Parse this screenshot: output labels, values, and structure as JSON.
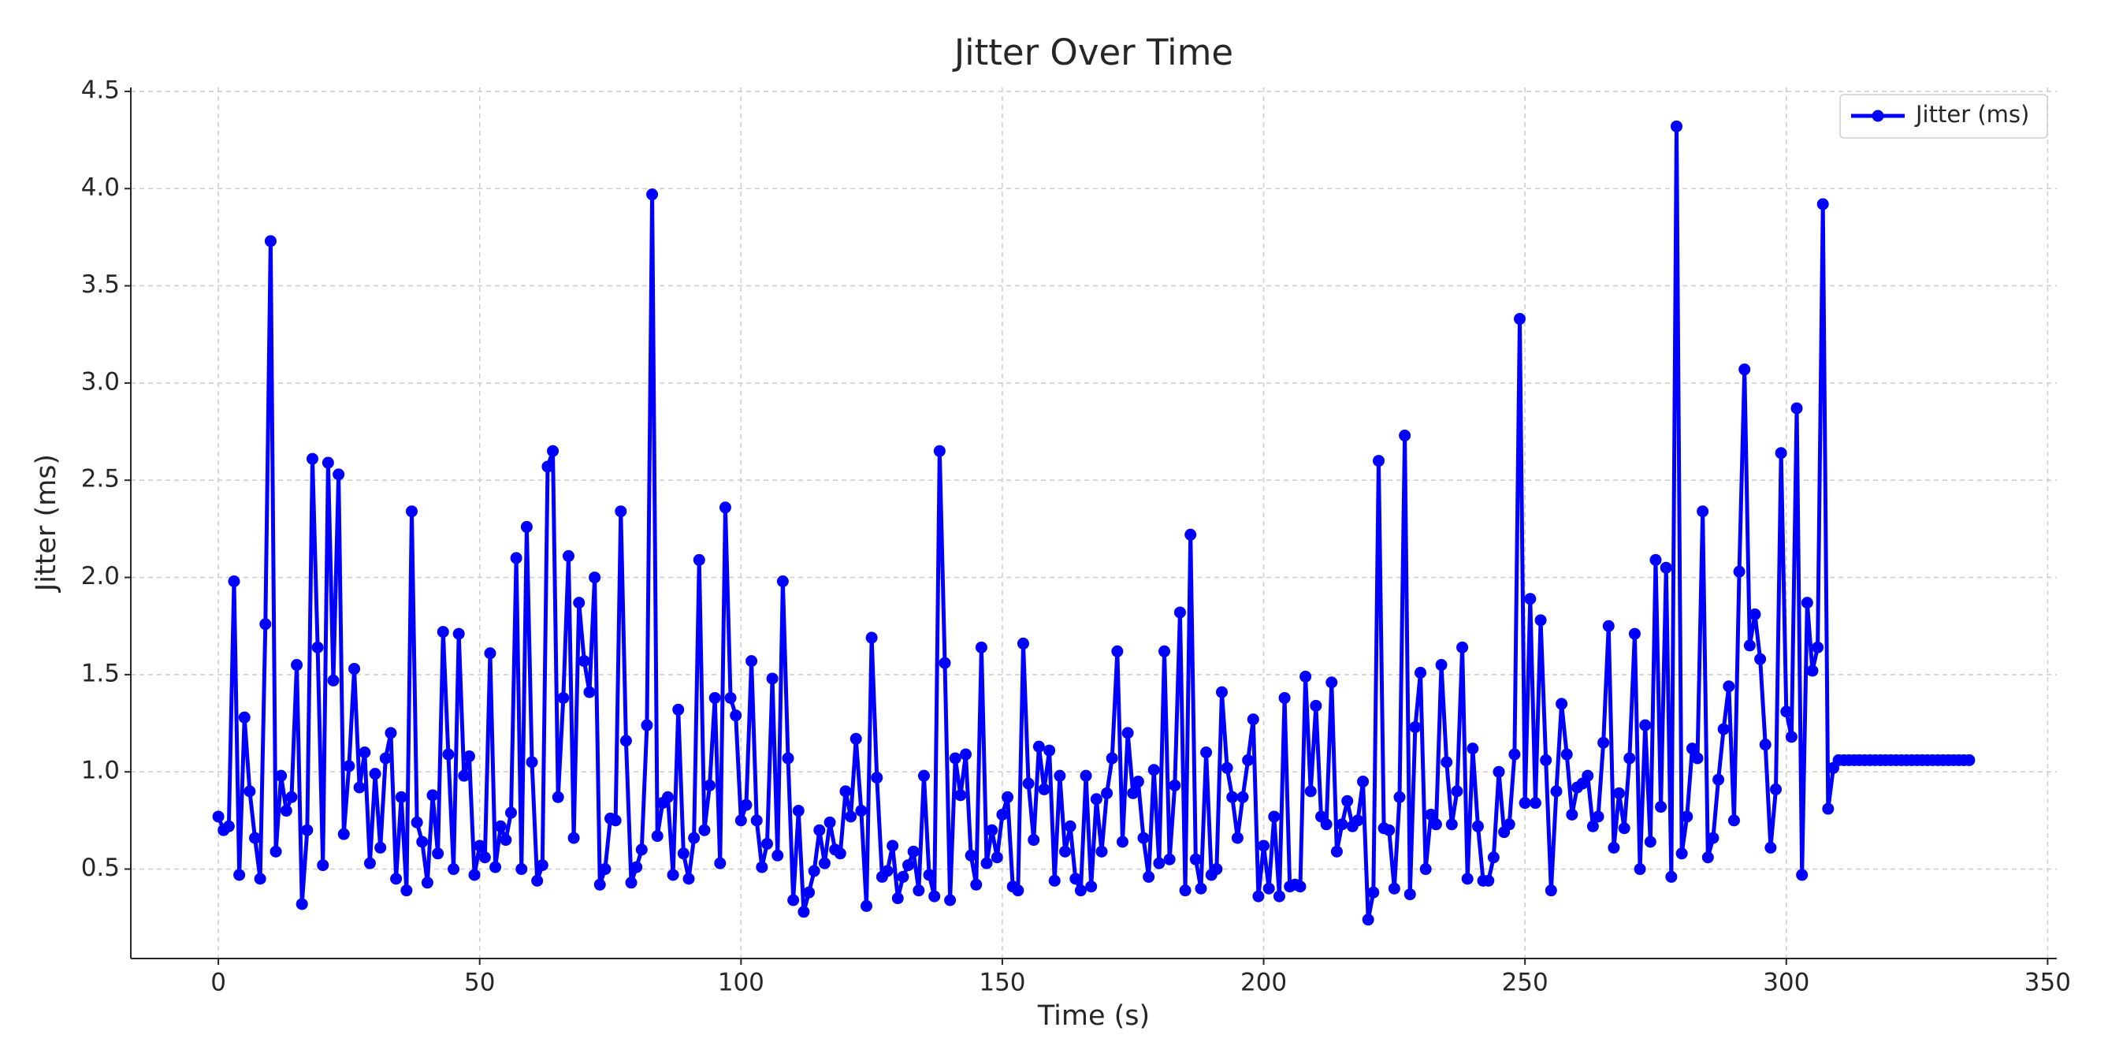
{
  "chart_data": {
    "type": "line",
    "title": "Jitter Over Time",
    "xlabel": "Time (s)",
    "ylabel": "Jitter (ms)",
    "x": [
      0,
      1,
      2,
      3,
      4,
      5,
      6,
      7,
      8,
      9,
      10,
      11,
      12,
      13,
      14,
      15,
      16,
      17,
      18,
      19,
      20,
      21,
      22,
      23,
      24,
      25,
      26,
      27,
      28,
      29,
      30,
      31,
      32,
      33,
      34,
      35,
      36,
      37,
      38,
      39,
      40,
      41,
      42,
      43,
      44,
      45,
      46,
      47,
      48,
      49,
      50,
      51,
      52,
      53,
      54,
      55,
      56,
      57,
      58,
      59,
      60,
      61,
      62,
      63,
      64,
      65,
      66,
      67,
      68,
      69,
      70,
      71,
      72,
      73,
      74,
      75,
      76,
      77,
      78,
      79,
      80,
      81,
      82,
      83,
      84,
      85,
      86,
      87,
      88,
      89,
      90,
      91,
      92,
      93,
      94,
      95,
      96,
      97,
      98,
      99,
      100,
      101,
      102,
      103,
      104,
      105,
      106,
      107,
      108,
      109,
      110,
      111,
      112,
      113,
      114,
      115,
      116,
      117,
      118,
      119,
      120,
      121,
      122,
      123,
      124,
      125,
      126,
      127,
      128,
      129,
      130,
      131,
      132,
      133,
      134,
      135,
      136,
      137,
      138,
      139,
      140,
      141,
      142,
      143,
      144,
      145,
      146,
      147,
      148,
      149,
      150,
      151,
      152,
      153,
      154,
      155,
      156,
      157,
      158,
      159,
      160,
      161,
      162,
      163,
      164,
      165,
      166,
      167,
      168,
      169,
      170,
      171,
      172,
      173,
      174,
      175,
      176,
      177,
      178,
      179,
      180,
      181,
      182,
      183,
      184,
      185,
      186,
      187,
      188,
      189,
      190,
      191,
      192,
      193,
      194,
      195,
      196,
      197,
      198,
      199,
      200,
      201,
      202,
      203,
      204,
      205,
      206,
      207,
      208,
      209,
      210,
      211,
      212,
      213,
      214,
      215,
      216,
      217,
      218,
      219,
      220,
      221,
      222,
      223,
      224,
      225,
      226,
      227,
      228,
      229,
      230,
      231,
      232,
      233,
      234,
      235,
      236,
      237,
      238,
      239,
      240,
      241,
      242,
      243,
      244,
      245,
      246,
      247,
      248,
      249,
      250,
      251,
      252,
      253,
      254,
      255,
      256,
      257,
      258,
      259,
      260,
      261,
      262,
      263,
      264,
      265,
      266,
      267,
      268,
      269,
      270,
      271,
      272,
      273,
      274,
      275,
      276,
      277,
      278,
      279,
      280,
      281,
      282,
      283,
      284,
      285,
      286,
      287,
      288,
      289,
      290,
      291,
      292,
      293,
      294,
      295,
      296,
      297,
      298,
      299,
      300,
      301,
      302,
      303,
      304,
      305,
      306,
      307,
      308,
      309,
      310,
      311,
      312,
      313,
      314,
      315,
      316,
      317,
      318,
      319,
      320,
      321,
      322,
      323,
      324,
      325,
      326,
      327,
      328,
      329,
      330,
      331,
      332,
      333,
      334,
      335
    ],
    "series": [
      {
        "name": "Jitter (ms)",
        "color": "#0000ff",
        "values": [
          0.77,
          0.7,
          0.72,
          1.98,
          0.47,
          1.28,
          0.9,
          0.66,
          0.45,
          1.76,
          3.73,
          0.59,
          0.98,
          0.8,
          0.87,
          1.55,
          0.32,
          0.7,
          2.61,
          1.64,
          0.52,
          2.59,
          1.47,
          2.53,
          0.68,
          1.03,
          1.53,
          0.92,
          1.1,
          0.53,
          0.99,
          0.61,
          1.07,
          1.2,
          0.45,
          0.87,
          0.39,
          2.34,
          0.74,
          0.64,
          0.43,
          0.88,
          0.58,
          1.72,
          1.09,
          0.5,
          1.71,
          0.98,
          1.08,
          0.47,
          0.62,
          0.56,
          1.61,
          0.51,
          0.72,
          0.65,
          0.79,
          2.1,
          0.5,
          2.26,
          1.05,
          0.44,
          0.52,
          2.57,
          2.65,
          0.87,
          1.38,
          2.11,
          0.66,
          1.87,
          1.57,
          1.41,
          2.0,
          0.42,
          0.5,
          0.76,
          0.75,
          2.34,
          1.16,
          0.43,
          0.51,
          0.6,
          1.24,
          3.97,
          0.67,
          0.84,
          0.87,
          0.47,
          1.32,
          0.58,
          0.45,
          0.66,
          2.09,
          0.7,
          0.93,
          1.38,
          0.53,
          2.36,
          1.38,
          1.29,
          0.75,
          0.83,
          1.57,
          0.75,
          0.51,
          0.63,
          1.48,
          0.57,
          1.98,
          1.07,
          0.34,
          0.8,
          0.28,
          0.38,
          0.49,
          0.7,
          0.53,
          0.74,
          0.6,
          0.58,
          0.9,
          0.77,
          1.17,
          0.8,
          0.31,
          1.69,
          0.97,
          0.46,
          0.49,
          0.62,
          0.35,
          0.46,
          0.52,
          0.59,
          0.39,
          0.98,
          0.47,
          0.36,
          2.65,
          1.56,
          0.34,
          1.07,
          0.88,
          1.09,
          0.57,
          0.42,
          1.64,
          0.53,
          0.7,
          0.56,
          0.78,
          0.87,
          0.41,
          0.39,
          1.66,
          0.94,
          0.65,
          1.13,
          0.91,
          1.11,
          0.44,
          0.98,
          0.59,
          0.72,
          0.45,
          0.39,
          0.98,
          0.41,
          0.86,
          0.59,
          0.89,
          1.07,
          1.62,
          0.64,
          1.2,
          0.89,
          0.95,
          0.66,
          0.46,
          1.01,
          0.53,
          1.62,
          0.55,
          0.93,
          1.82,
          0.39,
          2.22,
          0.55,
          0.4,
          1.1,
          0.47,
          0.5,
          1.41,
          1.02,
          0.87,
          0.66,
          0.87,
          1.06,
          1.27,
          0.36,
          0.62,
          0.4,
          0.77,
          0.36,
          1.38,
          0.41,
          0.42,
          0.41,
          1.49,
          0.9,
          1.34,
          0.77,
          0.73,
          1.46,
          0.59,
          0.73,
          0.85,
          0.72,
          0.75,
          0.95,
          0.24,
          0.38,
          2.6,
          0.71,
          0.7,
          0.4,
          0.87,
          2.73,
          0.37,
          1.23,
          1.51,
          0.5,
          0.78,
          0.73,
          1.55,
          1.05,
          0.73,
          0.9,
          1.64,
          0.45,
          1.12,
          0.72,
          0.44,
          0.44,
          0.56,
          1.0,
          0.69,
          0.73,
          1.09,
          3.33,
          0.84,
          1.89,
          0.84,
          1.78,
          1.06,
          0.39,
          0.9,
          1.35,
          1.09,
          0.78,
          0.92,
          0.94,
          0.98,
          0.72,
          0.77,
          1.15,
          1.75,
          0.61,
          0.89,
          0.71,
          1.07,
          1.71,
          0.5,
          1.24,
          0.64,
          2.09,
          0.82,
          2.05,
          0.46,
          4.32,
          0.58,
          0.77,
          1.12,
          1.07,
          2.34,
          0.56,
          0.66,
          0.96,
          1.22,
          1.44,
          0.75,
          2.03,
          3.07,
          1.65,
          1.81,
          1.58,
          1.14,
          0.61,
          0.91,
          2.64,
          1.31,
          1.18,
          2.87,
          0.47,
          1.87,
          1.52,
          1.64,
          3.92,
          0.81,
          1.02,
          1.06,
          1.06,
          1.06,
          1.06,
          1.06,
          1.06,
          1.06,
          1.06,
          1.06,
          1.06,
          1.06,
          1.06,
          1.06,
          1.06,
          1.06,
          1.06,
          1.06,
          1.06,
          1.06,
          1.06,
          1.06,
          1.06,
          1.06,
          1.06,
          1.06,
          1.06
        ]
      }
    ],
    "xlim": [
      -16.75,
      351.75
    ],
    "xticks": [
      0,
      50,
      100,
      150,
      200,
      250,
      300,
      350
    ],
    "ylim": [
      0.04,
      4.52
    ],
    "yticks": [
      0.5,
      {
        "value": 1,
        "label": "1.0"
      },
      1.5,
      {
        "value": 2,
        "label": "2.0"
      },
      2.5,
      {
        "value": 3,
        "label": "3.0"
      },
      3.5,
      {
        "value": 4,
        "label": "4.0"
      },
      4.5
    ],
    "grid": true,
    "legend": "upper right"
  }
}
